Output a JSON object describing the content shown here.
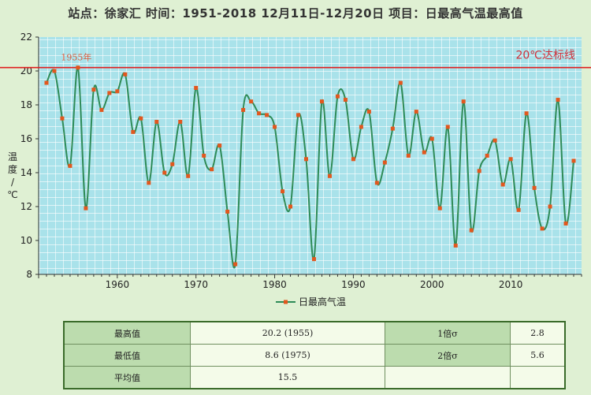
{
  "title": "站点：徐家汇  时间：1951-2018   12月11日-12月20日  项目：日最高气温最高值",
  "chart_data": {
    "type": "line",
    "title": "站点：徐家汇  时间：1951-2018   12月11日-12月20日  项目：日最高气温最高值",
    "ylabel": "温度/℃",
    "xlabel": "",
    "xlim": [
      1950,
      2019
    ],
    "ylim": [
      8,
      22
    ],
    "yticks": [
      8,
      10,
      12,
      14,
      16,
      18,
      20,
      22
    ],
    "xticks": [
      1960,
      1970,
      1980,
      1990,
      2000,
      2010
    ],
    "grid": true,
    "legend_position": "bottom-center",
    "series": [
      {
        "name": "日最高气温",
        "color": "#2e8b57",
        "marker_color": "#e2571e",
        "x": [
          1951,
          1952,
          1953,
          1954,
          1955,
          1956,
          1957,
          1958,
          1959,
          1960,
          1961,
          1962,
          1963,
          1964,
          1965,
          1966,
          1967,
          1968,
          1969,
          1970,
          1971,
          1972,
          1973,
          1974,
          1975,
          1976,
          1977,
          1978,
          1979,
          1980,
          1981,
          1982,
          1983,
          1984,
          1985,
          1986,
          1987,
          1988,
          1989,
          1990,
          1991,
          1992,
          1993,
          1994,
          1995,
          1996,
          1997,
          1998,
          1999,
          2000,
          2001,
          2002,
          2003,
          2004,
          2005,
          2006,
          2007,
          2008,
          2009,
          2010,
          2011,
          2012,
          2013,
          2014,
          2015,
          2016,
          2017,
          2018
        ],
        "values": [
          19.3,
          20.0,
          17.2,
          14.4,
          20.2,
          11.9,
          18.9,
          17.7,
          18.7,
          18.8,
          19.8,
          16.4,
          17.2,
          13.4,
          17.0,
          14.0,
          14.5,
          17.0,
          13.8,
          19.0,
          15.0,
          14.2,
          15.6,
          11.7,
          8.6,
          17.7,
          18.2,
          17.5,
          17.4,
          16.7,
          12.9,
          12.0,
          17.4,
          14.8,
          8.9,
          18.2,
          13.8,
          18.5,
          18.3,
          14.8,
          16.7,
          17.6,
          13.4,
          14.6,
          16.6,
          19.3,
          15.0,
          17.6,
          15.2,
          16.0,
          11.9,
          16.7,
          9.7,
          18.2,
          10.6,
          14.1,
          15.0,
          15.9,
          13.3,
          14.8,
          11.8,
          17.5,
          13.1,
          10.7,
          12.0,
          18.3,
          11.0,
          14.7
        ]
      }
    ],
    "threshold": {
      "value": 20.2,
      "label": "20℃达标线",
      "color": "#e02020"
    },
    "annotations": [
      {
        "text": "1955年",
        "x": 1955,
        "y": 20.2
      }
    ]
  },
  "stats": {
    "max_label": "最高值",
    "max_value": "20.2 (1955)",
    "min_label": "最低值",
    "min_value": "8.6 (1975)",
    "avg_label": "平均值",
    "avg_value": "15.5",
    "sigma1_label": "1倍σ",
    "sigma1_value": "2.8",
    "sigma2_label": "2倍σ",
    "sigma2_value": "5.6"
  }
}
